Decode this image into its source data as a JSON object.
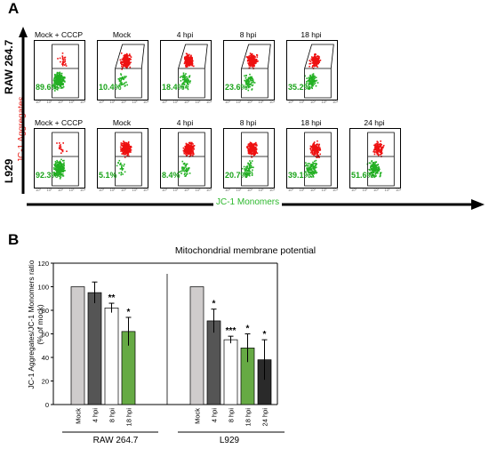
{
  "panel_a": {
    "letter": "A",
    "row_labels": [
      "RAW 264.7",
      "L929"
    ],
    "y_axis_label": "JC-1 Aggregates",
    "x_axis_label": "JC-1 Monomers",
    "tick_marks": [
      "10⁰",
      "10¹",
      "10²",
      "10³",
      "10⁴"
    ],
    "raw_row": [
      {
        "title": "Mock + CCCP",
        "percent": "89.6%",
        "red_level": 0.08,
        "gate": "narrow"
      },
      {
        "title": "Mock",
        "percent": "10.4%",
        "red_level": 0.85,
        "gate": "wide"
      },
      {
        "title": "4 hpi",
        "percent": "18.4%",
        "red_level": 0.75,
        "gate": "wide"
      },
      {
        "title": "8 hpi",
        "percent": "23.6%",
        "red_level": 0.7,
        "gate": "wide"
      },
      {
        "title": "18 hpi",
        "percent": "35.2%",
        "red_level": 0.55,
        "gate": "wide"
      }
    ],
    "l929_row": [
      {
        "title": "Mock + CCCP",
        "percent": "92.3%",
        "red_level": 0.05
      },
      {
        "title": "Mock",
        "percent": "5.1%",
        "red_level": 0.9
      },
      {
        "title": "4 hpi",
        "percent": "8.4%",
        "red_level": 0.85
      },
      {
        "title": "8 hpi",
        "percent": "20.7%",
        "red_level": 0.75
      },
      {
        "title": "18 hpi",
        "percent": "39.1%",
        "red_level": 0.6
      },
      {
        "title": "24 hpi",
        "percent": "51.6%",
        "red_level": 0.45
      }
    ]
  },
  "panel_b": {
    "letter": "B",
    "colors": {
      "light_gray": "#cfcccc",
      "dark_gray": "#555555",
      "white": "#ffffff",
      "green": "#66aa44",
      "black": "#2a2a2a"
    },
    "chart_data": {
      "type": "bar",
      "title": "Mitochondrial membrane potential",
      "ylabel": "JC-1 Aggregates/JC-1 Monomers ratio\n(% of mock)",
      "ylim": [
        0,
        120
      ],
      "yticks": [
        0,
        20,
        40,
        60,
        80,
        100,
        120
      ],
      "groups": [
        {
          "name": "RAW 264.7",
          "bars": [
            {
              "category": "Mock",
              "value": 100,
              "error": 0,
              "sig": "",
              "color": "light_gray"
            },
            {
              "category": "4 hpi",
              "value": 95,
              "error": 9,
              "sig": "",
              "color": "dark_gray"
            },
            {
              "category": "8 hpi",
              "value": 82,
              "error": 4,
              "sig": "**",
              "color": "white"
            },
            {
              "category": "18 hpi",
              "value": 62,
              "error": 12,
              "sig": "*",
              "color": "green"
            }
          ]
        },
        {
          "name": "L929",
          "bars": [
            {
              "category": "Mock",
              "value": 100,
              "error": 0,
              "sig": "",
              "color": "light_gray"
            },
            {
              "category": "4 hpi",
              "value": 71,
              "error": 10,
              "sig": "*",
              "color": "dark_gray"
            },
            {
              "category": "8 hpi",
              "value": 55,
              "error": 3,
              "sig": "***",
              "color": "white"
            },
            {
              "category": "18 hpi",
              "value": 48,
              "error": 12,
              "sig": "*",
              "color": "green"
            },
            {
              "category": "24 hpi",
              "value": 38,
              "error": 17,
              "sig": "*",
              "color": "black"
            }
          ]
        }
      ]
    }
  }
}
